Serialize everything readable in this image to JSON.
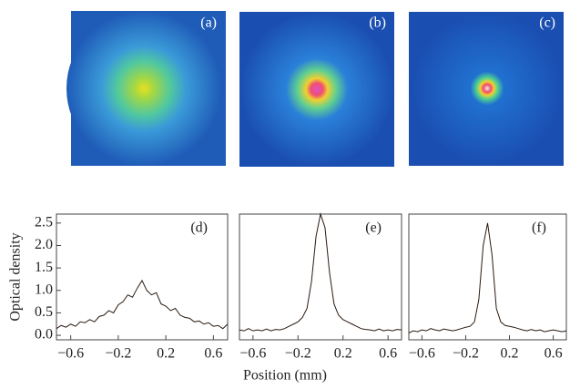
{
  "images": [
    {
      "label": "(a)"
    },
    {
      "label": "(b)"
    },
    {
      "label": "(c)"
    }
  ],
  "chart_data": [
    {
      "type": "line",
      "label": "(d)",
      "ylabel": "Optical density",
      "x": [
        -0.72,
        -0.68,
        -0.64,
        -0.6,
        -0.56,
        -0.52,
        -0.48,
        -0.44,
        -0.4,
        -0.36,
        -0.32,
        -0.28,
        -0.24,
        -0.2,
        -0.16,
        -0.12,
        -0.08,
        -0.04,
        0,
        0.04,
        0.08,
        0.12,
        0.16,
        0.2,
        0.24,
        0.28,
        0.32,
        0.36,
        0.4,
        0.44,
        0.48,
        0.52,
        0.56,
        0.6,
        0.64,
        0.68,
        0.72
      ],
      "series": [
        {
          "color": "#2a1a10",
          "values": [
            0.15,
            0.22,
            0.18,
            0.25,
            0.2,
            0.3,
            0.28,
            0.35,
            0.3,
            0.42,
            0.45,
            0.55,
            0.5,
            0.68,
            0.75,
            0.9,
            0.85,
            1.05,
            1.22,
            1.0,
            0.9,
            0.95,
            0.7,
            0.65,
            0.55,
            0.6,
            0.45,
            0.4,
            0.38,
            0.3,
            0.32,
            0.25,
            0.28,
            0.2,
            0.22,
            0.15,
            0.25
          ]
        }
      ],
      "xlim": [
        -0.72,
        0.72
      ],
      "xticks": [
        {
          "value": -0.6,
          "label": "−0.6"
        },
        {
          "value": -0.2,
          "label": "−0.2"
        },
        0.2,
        0.6
      ],
      "ylim": [
        -0.1,
        2.7
      ],
      "yticks": [
        {
          "value": 0,
          "label": "0.0"
        },
        0.5,
        {
          "value": 1,
          "label": "1.0"
        },
        1.5,
        {
          "value": 2,
          "label": "2.0"
        },
        2.5
      ]
    },
    {
      "type": "line",
      "label": "(e)",
      "xlabel": "Position (mm)",
      "x": [
        -0.72,
        -0.68,
        -0.64,
        -0.6,
        -0.56,
        -0.52,
        -0.48,
        -0.44,
        -0.4,
        -0.36,
        -0.32,
        -0.28,
        -0.24,
        -0.2,
        -0.16,
        -0.12,
        -0.08,
        -0.04,
        0,
        0.04,
        0.08,
        0.12,
        0.16,
        0.2,
        0.24,
        0.28,
        0.32,
        0.36,
        0.4,
        0.44,
        0.48,
        0.52,
        0.56,
        0.6,
        0.64,
        0.68,
        0.72
      ],
      "series": [
        {
          "color": "#2a1a10",
          "values": [
            0.12,
            0.1,
            0.15,
            0.1,
            0.12,
            0.1,
            0.14,
            0.1,
            0.13,
            0.12,
            0.15,
            0.2,
            0.25,
            0.3,
            0.4,
            0.6,
            1.2,
            2.2,
            2.7,
            2.4,
            1.4,
            0.7,
            0.45,
            0.35,
            0.3,
            0.25,
            0.2,
            0.15,
            0.13,
            0.12,
            0.1,
            0.14,
            0.1,
            0.12,
            0.1,
            0.13,
            0.12
          ]
        }
      ],
      "xlim": [
        -0.72,
        0.72
      ],
      "xticks": [
        {
          "value": -0.6,
          "label": "−0.6"
        },
        {
          "value": -0.2,
          "label": "−0.2"
        },
        0.2,
        0.6
      ],
      "ylim": [
        -0.1,
        2.7
      ]
    },
    {
      "type": "line",
      "label": "(f)",
      "x": [
        -0.72,
        -0.68,
        -0.64,
        -0.6,
        -0.56,
        -0.52,
        -0.48,
        -0.44,
        -0.4,
        -0.36,
        -0.32,
        -0.28,
        -0.24,
        -0.2,
        -0.16,
        -0.12,
        -0.08,
        -0.04,
        0,
        0.04,
        0.08,
        0.12,
        0.16,
        0.2,
        0.24,
        0.28,
        0.32,
        0.36,
        0.4,
        0.44,
        0.48,
        0.52,
        0.56,
        0.6,
        0.64,
        0.68,
        0.72
      ],
      "series": [
        {
          "color": "#2a1a10",
          "values": [
            0.05,
            0.1,
            0.08,
            0.12,
            0.1,
            0.15,
            0.12,
            0.1,
            0.14,
            0.12,
            0.1,
            0.12,
            0.15,
            0.18,
            0.2,
            0.3,
            0.8,
            2.0,
            2.5,
            1.8,
            0.6,
            0.3,
            0.22,
            0.2,
            0.18,
            0.15,
            0.12,
            0.1,
            0.13,
            0.1,
            0.12,
            0.08,
            0.1,
            0.12,
            0.1,
            0.08,
            0.1
          ]
        }
      ],
      "xlim": [
        -0.72,
        0.72
      ],
      "xticks": [
        {
          "value": -0.6,
          "label": "−0.6"
        },
        {
          "value": -0.2,
          "label": "−0.2"
        },
        0.2,
        0.6
      ],
      "ylim": [
        -0.1,
        2.7
      ]
    }
  ]
}
